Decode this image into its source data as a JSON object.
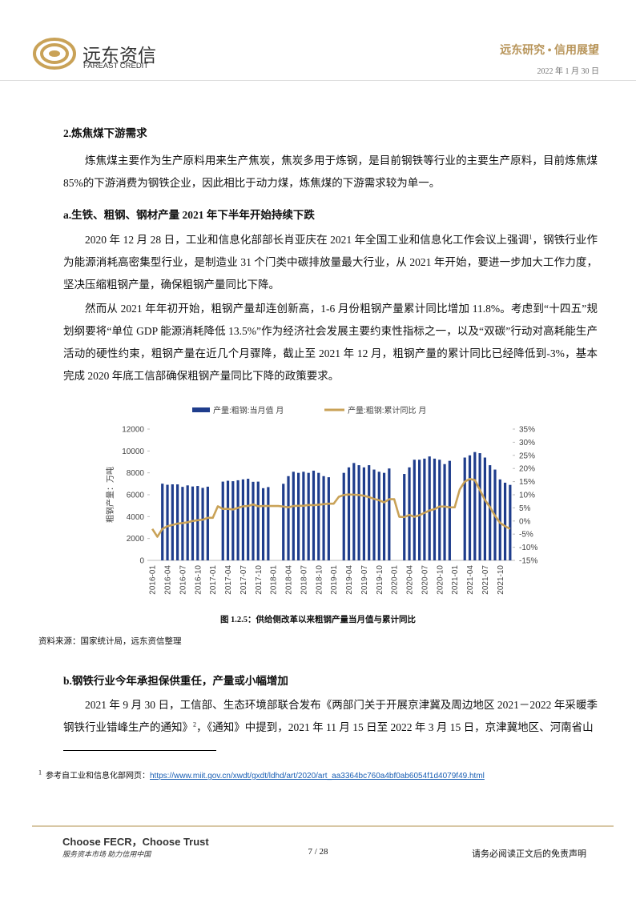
{
  "header": {
    "logo_cn": "远东资信",
    "logo_en": "FAREAST CREDIT",
    "series": "远东研究 • 信用展望",
    "date": "2022 年 1 月 30 日"
  },
  "body": {
    "h1": "2.炼焦煤下游需求",
    "p1": "炼焦煤主要作为生产原料用来生产焦炭，焦炭多用于炼钢，是目前钢铁等行业的主要生产原料，目前炼焦煤 85%的下游消费为钢铁企业，因此相比于动力煤，炼焦煤的下游需求较为单一。",
    "h2": "a.生铁、粗钢、钢材产量 2021 年下半年开始持续下跌",
    "p2": [
      "2020 年 12 月 28 日，工业和信息化部部长肖亚庆在 2021 年全国工业和信息化工作会议上强调",
      "1",
      "，钢铁行业作为能源消耗高密集型行业，是制造业 31 个门类中碳排放量最大行业，从 2021 年开始，要进一步加大工作力度，坚决压缩粗钢产量，确保粗钢产量同比下降。"
    ],
    "p3": "然而从 2021 年年初开始，粗钢产量却连创新高，1-6 月份粗钢产量累计同比增加 11.8%。考虑到“十四五”规划纲要将“单位 GDP 能源消耗降低 13.5%”作为经济社会发展主要约束性指标之一，以及“双碳”行动对高耗能生产活动的硬性约束，粗钢产量在近几个月骤降，截止至 2021 年 12 月，粗钢产量的累计同比已经降低到-3%，基本完成 2020 年底工信部确保粗钢产量同比下降的政策要求。",
    "caption": "图 1.2.5：供给侧改革以来粗钢产量当月值与累计同比",
    "source": "资料来源：国家统计局，远东资信整理",
    "h3": "b.钢铁行业今年承担保供重任，产量或小幅增加",
    "p4": [
      "2021 年 9 月 30 日，工信部、生态环境部联合发布《两部门关于开展京津冀及周边地区 2021－2022 年采暖季钢铁行业错峰生产的通知》",
      "2",
      "，《通知》中提到，2021 年 11 月 15 日至 2022 年 3 月 15 日，京津冀地区、河南省山"
    ]
  },
  "footnote": {
    "mark": "1",
    "text": "参考自工业和信息化部网页：",
    "url": "https://www.miit.gov.cn/xwdt/gxdt/ldhd/art/2020/art_aa3364bc760a4bf0ab6054f1d4079f49.html"
  },
  "footer": {
    "slogan_en": "Choose FECR，Choose Trust",
    "slogan_cn": "服务资本市场  助力信用中国",
    "page": "7 / 28",
    "disclaimer": "请务必阅读正文后的免责声明"
  },
  "chart_data": {
    "type": "bar_line",
    "y_label": "粗钢产量：万吨",
    "categories": [
      "2016-01",
      null,
      null,
      "2016-04",
      null,
      null,
      "2016-07",
      null,
      null,
      "2016-10",
      null,
      null,
      "2017-01",
      null,
      null,
      "2017-04",
      null,
      null,
      "2017-07",
      null,
      null,
      "2017-10",
      null,
      null,
      "2018-01",
      null,
      null,
      "2018-04",
      null,
      null,
      "2018-07",
      null,
      null,
      "2018-10",
      null,
      null,
      "2019-01",
      null,
      null,
      "2019-04",
      null,
      null,
      "2019-07",
      null,
      null,
      "2019-10",
      null,
      null,
      "2020-01",
      null,
      null,
      "2020-04",
      null,
      null,
      "2020-07",
      null,
      null,
      "2020-10",
      null,
      null,
      "2021-01",
      null,
      null,
      "2021-04",
      null,
      null,
      "2021-07",
      null,
      null,
      "2021-10",
      null,
      null
    ],
    "series": [
      {
        "name": "产量:粗钢:当月值  月",
        "color": "#1f3d8c",
        "values": [
          null,
          null,
          7010,
          6912,
          6950,
          6947,
          6720,
          6855,
          6755,
          6801,
          6627,
          6737,
          null,
          null,
          7200,
          7278,
          7236,
          7323,
          7402,
          7459,
          7183,
          7200,
          6600,
          6700,
          null,
          null,
          7000,
          7700,
          8100,
          8000,
          8100,
          8000,
          8200,
          8000,
          7700,
          7600,
          null,
          null,
          8000,
          8500,
          8900,
          8700,
          8500,
          8700,
          8300,
          8100,
          8000,
          8400,
          null,
          null,
          7900,
          8500,
          9200,
          9200,
          9300,
          9500,
          9300,
          9200,
          8800,
          9100,
          null,
          null,
          9400,
          9600,
          9900,
          9800,
          9400,
          8700,
          8300,
          7400,
          7100,
          6900
        ]
      },
      {
        "name": "产量:粗钢:累计同比  月",
        "color": "#c9a257",
        "axis": "y2",
        "values": [
          -3,
          -6,
          -3,
          -2,
          -1.5,
          -1,
          -0.8,
          -0.5,
          0,
          0.3,
          0.5,
          1.2,
          1.2,
          5.6,
          4.6,
          4.6,
          4.4,
          5,
          5.6,
          5.7,
          6.3,
          5.6,
          5.7,
          5.7,
          5.7,
          5.7,
          5.5,
          5.2,
          5.7,
          5.8,
          5.8,
          6.1,
          6,
          6.2,
          6.4,
          6.6,
          6.6,
          9.2,
          9.9,
          10.1,
          10,
          9.9,
          9.6,
          9.1,
          8.4,
          7.9,
          7.1,
          8.3,
          8.3,
          1.6,
          1.5,
          2.3,
          1.6,
          2.2,
          3.1,
          4,
          4.5,
          5.5,
          5.5,
          5.2,
          5.2,
          12,
          15,
          16,
          15.6,
          11.8,
          8,
          5.3,
          2,
          -0.7,
          -2,
          -3
        ]
      }
    ],
    "ylim": [
      0,
      12000
    ],
    "yticks": [
      0,
      2000,
      4000,
      6000,
      8000,
      10000,
      12000
    ],
    "y2lim": [
      -15,
      35
    ],
    "y2ticks": [
      {
        "value": 35,
        "label": "35%"
      },
      {
        "value": 30,
        "label": "30%"
      },
      {
        "value": 25,
        "label": "25%"
      },
      {
        "value": 20,
        "label": "20%"
      },
      {
        "value": 15,
        "label": "15%"
      },
      {
        "value": 10,
        "label": "10%"
      },
      {
        "value": 5,
        "label": "5%"
      },
      {
        "value": 0,
        "label": "0%"
      },
      {
        "value": -5,
        "label": "-5%"
      },
      {
        "value": -10,
        "label": "-10%"
      },
      {
        "value": -15,
        "label": "-15%"
      }
    ],
    "legend": "top"
  }
}
